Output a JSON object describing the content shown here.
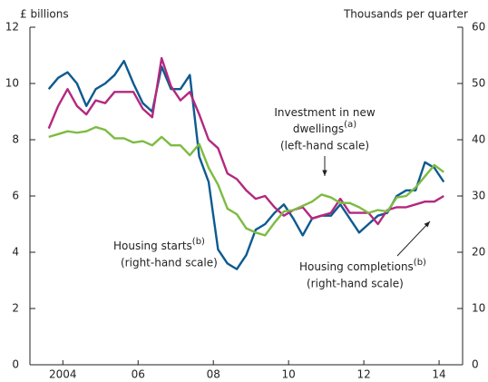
{
  "chart_data": {
    "type": "line",
    "y_label": "£ billions",
    "y2_label": "Thousands per quarter",
    "x": [
      2004.125,
      2004.375,
      2004.625,
      2004.875,
      2005.125,
      2005.375,
      2005.625,
      2005.875,
      2006.125,
      2006.375,
      2006.625,
      2006.875,
      2007.125,
      2007.375,
      2007.625,
      2007.875,
      2008.125,
      2008.375,
      2008.625,
      2008.875,
      2009.125,
      2009.375,
      2009.625,
      2009.875,
      2010.125,
      2010.375,
      2010.625,
      2010.875,
      2011.125,
      2011.375,
      2011.625,
      2011.875,
      2012.125,
      2012.375,
      2012.625,
      2012.875,
      2013.125,
      2013.375,
      2013.625,
      2013.875,
      2014.125,
      2014.375,
      2014.625
    ],
    "xlim": [
      2003.625,
      2015.125
    ],
    "xticks": [
      {
        "value": 2004.5,
        "label": "2004"
      },
      {
        "value": 2006.5,
        "label": "06"
      },
      {
        "value": 2008.5,
        "label": "08"
      },
      {
        "value": 2010.5,
        "label": "10"
      },
      {
        "value": 2012.5,
        "label": "12"
      },
      {
        "value": 2014.5,
        "label": "14"
      }
    ],
    "ylim": [
      0,
      12
    ],
    "yticks": [
      0,
      2,
      4,
      6,
      8,
      10,
      12
    ],
    "y2lim": [
      0,
      60
    ],
    "y2ticks": [
      0,
      10,
      20,
      30,
      40,
      50,
      60
    ],
    "grid": false,
    "series": [
      {
        "name": "Housing starts",
        "color": "#0d5a8f",
        "axis": "y2",
        "values": [
          49,
          51,
          52,
          50,
          46,
          49,
          50,
          51.5,
          54,
          50,
          46.5,
          45,
          53,
          49,
          49,
          51.5,
          37,
          32.5,
          20.5,
          18,
          17,
          19.5,
          24,
          25,
          27,
          28.5,
          26,
          23,
          26,
          26.5,
          26.5,
          28.5,
          26,
          23.5,
          25,
          26.5,
          27,
          30,
          31,
          31,
          36,
          35,
          32.5
        ]
      },
      {
        "name": "Housing completions",
        "color": "#b3287f",
        "axis": "y2",
        "values": [
          42,
          46,
          49,
          46,
          44.5,
          47,
          46.5,
          48.5,
          48.5,
          48.5,
          45.5,
          44,
          54.5,
          49.5,
          47,
          48.5,
          44.5,
          40,
          38.5,
          34,
          33,
          31,
          29.5,
          30,
          28,
          26.5,
          27.5,
          28,
          26,
          26.5,
          27,
          29.5,
          27,
          27,
          27,
          25,
          27.5,
          28,
          28,
          28.5,
          29,
          29,
          30
        ]
      },
      {
        "name": "Investment in new dwellings",
        "color": "#7dbb42",
        "axis": "y",
        "values": [
          8.1,
          8.2,
          8.3,
          8.25,
          8.3,
          8.45,
          8.35,
          8.05,
          8.05,
          7.9,
          7.95,
          7.8,
          8.1,
          7.8,
          7.8,
          7.45,
          7.85,
          7.0,
          6.4,
          5.55,
          5.35,
          4.85,
          4.7,
          4.6,
          5.05,
          5.45,
          5.5,
          5.65,
          5.8,
          6.05,
          5.95,
          5.75,
          5.75,
          5.6,
          5.4,
          5.5,
          5.45,
          5.95,
          6.0,
          6.3,
          6.7,
          7.1,
          6.85
        ]
      }
    ],
    "annotations": [
      {
        "lines": [
          "Investment in new",
          "dwellings"
        ],
        "note": "(a)",
        "scale": "(left-hand scale)"
      },
      {
        "lines": [
          "Housing starts"
        ],
        "note": "(b)",
        "scale": "(right-hand scale)"
      },
      {
        "lines": [
          "Housing completions"
        ],
        "note": "(b)",
        "scale": "(right-hand scale)"
      }
    ]
  }
}
